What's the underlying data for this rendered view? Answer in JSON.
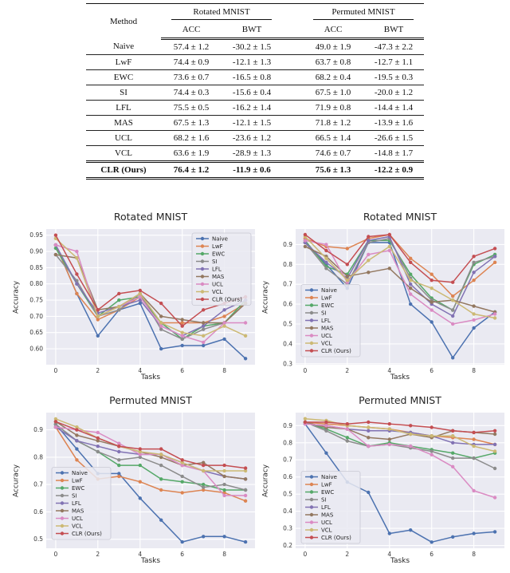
{
  "style": {
    "plot_bg": "#eaeaf2",
    "grid_color": "#ffffff",
    "text_color": "#262626",
    "highlight_color": "#C44E52"
  },
  "table": {
    "method_header": "Method",
    "col_groups": [
      "Rotated MNIST",
      "Permuted MNIST"
    ],
    "sub_headers": [
      "ACC",
      "BWT",
      "ACC",
      "BWT"
    ],
    "rows": [
      {
        "method": "Naive",
        "values": [
          "57.4 ± 1.2",
          "-30.2 ± 1.5",
          "49.0 ± 1.9",
          "-47.3 ± 2.2"
        ],
        "bold": false
      },
      {
        "method": "LwF",
        "values": [
          "74.4 ± 0.9",
          "-12.1 ± 1.3",
          "63.7 ± 0.8",
          "-12.7 ± 1.1"
        ],
        "bold": false
      },
      {
        "method": "EWC",
        "values": [
          "73.6 ± 0.7",
          "-16.5 ± 0.8",
          "68.2 ± 0.4",
          "-19.5 ± 0.3"
        ],
        "bold": false
      },
      {
        "method": "SI",
        "values": [
          "74.4 ± 0.3",
          "-15.6 ± 0.4",
          "67.5 ± 1.0",
          "-20.0 ± 1.2"
        ],
        "bold": false
      },
      {
        "method": "LFL",
        "values": [
          "75.5 ± 0.5",
          "-16.2 ± 1.4",
          "71.9 ± 0.8",
          "-14.4 ± 1.4"
        ],
        "bold": false
      },
      {
        "method": "MAS",
        "values": [
          "67.5 ± 1.3",
          "-12.1 ± 1.5",
          "71.8 ± 1.2",
          "-13.9 ± 1.6"
        ],
        "bold": false
      },
      {
        "method": "UCL",
        "values": [
          "68.2 ± 1.6",
          "-23.6 ± 1.2",
          "66.5 ± 1.4",
          "-26.6 ± 1.5"
        ],
        "bold": false
      },
      {
        "method": "VCL",
        "values": [
          "63.6 ± 1.9",
          "-28.9 ± 1.3",
          "74.6 ± 0.7",
          "-14.8 ± 1.7"
        ],
        "bold": false
      },
      {
        "method": "CLR (Ours)",
        "values": [
          "76.4 ± 1.2",
          "-11.9 ± 0.6",
          "75.6 ± 1.3",
          "-12.2 ± 0.9"
        ],
        "bold": true
      }
    ]
  },
  "chart_data": [
    {
      "type": "line",
      "title": "Rotated MNIST",
      "xlabel": "Tasks",
      "ylabel": "Accuracy",
      "x": [
        0,
        1,
        2,
        3,
        4,
        5,
        6,
        7,
        8,
        9
      ],
      "xlim": [
        -0.45,
        9.45
      ],
      "ylim": [
        0.551,
        0.969
      ],
      "xticks": [
        0,
        2,
        4,
        6,
        8
      ],
      "xtick_labels": [
        "0",
        "2",
        "4",
        "6",
        "8"
      ],
      "yticks": [
        0.6,
        0.65,
        0.7,
        0.75,
        0.8,
        0.85,
        0.9,
        0.95
      ],
      "ytick_labels": [
        "0.60",
        "0.65",
        "0.70",
        "0.75",
        "0.80",
        "0.85",
        "0.90",
        "0.95"
      ],
      "grid": true,
      "legend": {
        "pos": "top-right",
        "bottom_offset": 0
      },
      "series": [
        {
          "name": "Naive",
          "color": "#4C72B0",
          "values": [
            0.92,
            0.77,
            0.64,
            0.72,
            0.74,
            0.6,
            0.61,
            0.61,
            0.63,
            0.57
          ]
        },
        {
          "name": "LwF",
          "color": "#DD8452",
          "values": [
            0.92,
            0.77,
            0.69,
            0.72,
            0.76,
            0.68,
            0.68,
            0.68,
            0.7,
            0.74
          ]
        },
        {
          "name": "EWC",
          "color": "#55A868",
          "values": [
            0.91,
            0.8,
            0.7,
            0.75,
            0.76,
            0.68,
            0.63,
            0.67,
            0.68,
            0.75
          ]
        },
        {
          "name": "SI",
          "color": "#8C8C8C",
          "values": [
            0.89,
            0.81,
            0.7,
            0.72,
            0.77,
            0.66,
            0.63,
            0.66,
            0.68,
            0.74
          ]
        },
        {
          "name": "LFL",
          "color": "#8172B3",
          "values": [
            0.92,
            0.8,
            0.71,
            0.73,
            0.75,
            0.67,
            0.64,
            0.67,
            0.72,
            0.75
          ]
        },
        {
          "name": "MAS",
          "color": "#937860",
          "values": [
            0.89,
            0.88,
            0.72,
            0.73,
            0.77,
            0.7,
            0.69,
            0.68,
            0.68,
            0.74
          ]
        },
        {
          "name": "UCL",
          "color": "#DA8BC3",
          "values": [
            0.92,
            0.9,
            0.7,
            0.73,
            0.76,
            0.67,
            0.64,
            0.62,
            0.68,
            0.68
          ]
        },
        {
          "name": "VCL",
          "color": "#CCB974",
          "values": [
            0.94,
            0.88,
            0.7,
            0.73,
            0.77,
            0.68,
            0.65,
            0.64,
            0.67,
            0.64
          ]
        },
        {
          "name": "CLR (Ours)",
          "color": "#C44E52",
          "values": [
            0.95,
            0.83,
            0.72,
            0.77,
            0.78,
            0.74,
            0.67,
            0.72,
            0.74,
            0.76
          ]
        }
      ]
    },
    {
      "type": "line",
      "title": "Rotated MNIST",
      "xlabel": "Tasks",
      "ylabel": "Accuracy",
      "x": [
        0,
        1,
        2,
        3,
        4,
        5,
        6,
        7,
        8,
        9
      ],
      "xlim": [
        -0.45,
        9.45
      ],
      "ylim": [
        0.295,
        0.978
      ],
      "xticks": [
        0,
        2,
        4,
        6,
        8
      ],
      "xtick_labels": [
        "0",
        "2",
        "4",
        "6",
        "8"
      ],
      "yticks": [
        0.3,
        0.4,
        0.5,
        0.6,
        0.7,
        0.8,
        0.9
      ],
      "ytick_labels": [
        "0.3",
        "0.4",
        "0.5",
        "0.6",
        "0.7",
        "0.8",
        "0.9"
      ],
      "grid": true,
      "legend": {
        "pos": "bottom-left",
        "bottom_offset": 10
      },
      "series": [
        {
          "name": "Naive",
          "color": "#4C72B0",
          "values": [
            0.91,
            0.8,
            0.68,
            0.91,
            0.91,
            0.6,
            0.51,
            0.33,
            0.48,
            0.56
          ]
        },
        {
          "name": "LwF",
          "color": "#DD8452",
          "values": [
            0.93,
            0.89,
            0.88,
            0.93,
            0.95,
            0.83,
            0.75,
            0.64,
            0.72,
            0.81
          ]
        },
        {
          "name": "EWC",
          "color": "#55A868",
          "values": [
            0.92,
            0.79,
            0.75,
            0.92,
            0.92,
            0.75,
            0.63,
            0.57,
            0.8,
            0.85
          ]
        },
        {
          "name": "SI",
          "color": "#8C8C8C",
          "values": [
            0.91,
            0.78,
            0.7,
            0.91,
            0.93,
            0.73,
            0.62,
            0.57,
            0.81,
            0.84
          ]
        },
        {
          "name": "LFL",
          "color": "#8172B3",
          "values": [
            0.91,
            0.81,
            0.73,
            0.92,
            0.94,
            0.7,
            0.6,
            0.54,
            0.76,
            0.84
          ]
        },
        {
          "name": "MAS",
          "color": "#937860",
          "values": [
            0.89,
            0.84,
            0.74,
            0.76,
            0.78,
            0.68,
            0.61,
            0.62,
            0.59,
            0.56
          ]
        },
        {
          "name": "UCL",
          "color": "#DA8BC3",
          "values": [
            0.92,
            0.9,
            0.71,
            0.85,
            0.87,
            0.65,
            0.57,
            0.5,
            0.52,
            0.55
          ]
        },
        {
          "name": "VCL",
          "color": "#CCB974",
          "values": [
            0.94,
            0.83,
            0.72,
            0.82,
            0.89,
            0.72,
            0.68,
            0.62,
            0.55,
            0.53
          ]
        },
        {
          "name": "CLR (Ours)",
          "color": "#C44E52",
          "values": [
            0.95,
            0.87,
            0.8,
            0.94,
            0.95,
            0.81,
            0.72,
            0.71,
            0.84,
            0.88
          ]
        }
      ]
    },
    {
      "type": "line",
      "title": "Permuted MNIST",
      "xlabel": "Tasks",
      "ylabel": "Accuracy",
      "x": [
        0,
        1,
        2,
        3,
        4,
        5,
        6,
        7,
        8,
        9
      ],
      "xlim": [
        -0.45,
        9.45
      ],
      "ylim": [
        0.467,
        0.963
      ],
      "xticks": [
        0,
        2,
        4,
        6,
        8
      ],
      "xtick_labels": [
        "0",
        "2",
        "4",
        "6",
        "8"
      ],
      "yticks": [
        0.5,
        0.6,
        0.7,
        0.8,
        0.9
      ],
      "ytick_labels": [
        "0.5",
        "0.6",
        "0.7",
        "0.8",
        "0.9"
      ],
      "grid": true,
      "legend": {
        "pos": "bottom-left",
        "bottom_offset": 11
      },
      "series": [
        {
          "name": "Naive",
          "color": "#4C72B0",
          "values": [
            0.92,
            0.83,
            0.74,
            0.74,
            0.65,
            0.57,
            0.49,
            0.51,
            0.51,
            0.49
          ]
        },
        {
          "name": "LwF",
          "color": "#DD8452",
          "values": [
            0.91,
            0.79,
            0.72,
            0.73,
            0.71,
            0.68,
            0.67,
            0.68,
            0.67,
            0.64
          ]
        },
        {
          "name": "EWC",
          "color": "#55A868",
          "values": [
            0.92,
            0.86,
            0.82,
            0.77,
            0.77,
            0.72,
            0.71,
            0.7,
            0.68,
            0.68
          ]
        },
        {
          "name": "SI",
          "color": "#8C8C8C",
          "values": [
            0.92,
            0.86,
            0.82,
            0.79,
            0.8,
            0.77,
            0.73,
            0.69,
            0.7,
            0.68
          ]
        },
        {
          "name": "LFL",
          "color": "#8172B3",
          "values": [
            0.91,
            0.86,
            0.84,
            0.82,
            0.81,
            0.81,
            0.78,
            0.75,
            0.73,
            0.72
          ]
        },
        {
          "name": "MAS",
          "color": "#937860",
          "values": [
            0.93,
            0.88,
            0.86,
            0.84,
            0.82,
            0.8,
            0.77,
            0.78,
            0.73,
            0.72
          ]
        },
        {
          "name": "UCL",
          "color": "#DA8BC3",
          "values": [
            0.91,
            0.9,
            0.89,
            0.85,
            0.81,
            0.81,
            0.77,
            0.75,
            0.66,
            0.66
          ]
        },
        {
          "name": "VCL",
          "color": "#CCB974",
          "values": [
            0.94,
            0.91,
            0.87,
            0.84,
            0.82,
            0.81,
            0.78,
            0.75,
            0.75,
            0.75
          ]
        },
        {
          "name": "CLR (Ours)",
          "color": "#C44E52",
          "values": [
            0.93,
            0.9,
            0.87,
            0.84,
            0.83,
            0.83,
            0.79,
            0.77,
            0.77,
            0.76
          ]
        }
      ]
    },
    {
      "type": "line",
      "title": "Permuted MNIST",
      "xlabel": "Tasks",
      "ylabel": "Accuracy",
      "x": [
        0,
        1,
        2,
        3,
        4,
        5,
        6,
        7,
        8,
        9
      ],
      "xlim": [
        -0.45,
        9.45
      ],
      "ylim": [
        0.184,
        0.976
      ],
      "xticks": [
        0,
        2,
        4,
        6,
        8
      ],
      "xtick_labels": [
        "0",
        "2",
        "4",
        "6",
        "8"
      ],
      "yticks": [
        0.2,
        0.3,
        0.4,
        0.5,
        0.6,
        0.7,
        0.8,
        0.9
      ],
      "ytick_labels": [
        "0.2",
        "0.3",
        "0.4",
        "0.5",
        "0.6",
        "0.7",
        "0.8",
        "0.9"
      ],
      "grid": true,
      "legend": {
        "pos": "bottom-left",
        "bottom_offset": 6
      },
      "series": [
        {
          "name": "Naive",
          "color": "#4C72B0",
          "values": [
            0.91,
            0.74,
            0.57,
            0.51,
            0.27,
            0.29,
            0.22,
            0.25,
            0.27,
            0.28
          ]
        },
        {
          "name": "LwF",
          "color": "#DD8452",
          "values": [
            0.92,
            0.91,
            0.9,
            0.89,
            0.88,
            0.86,
            0.84,
            0.83,
            0.82,
            0.79
          ]
        },
        {
          "name": "EWC",
          "color": "#55A868",
          "values": [
            0.92,
            0.88,
            0.83,
            0.78,
            0.8,
            0.78,
            0.76,
            0.74,
            0.71,
            0.74
          ]
        },
        {
          "name": "SI",
          "color": "#8C8C8C",
          "values": [
            0.92,
            0.87,
            0.81,
            0.78,
            0.79,
            0.77,
            0.75,
            0.71,
            0.71,
            0.65
          ]
        },
        {
          "name": "LFL",
          "color": "#8172B3",
          "values": [
            0.91,
            0.9,
            0.88,
            0.87,
            0.87,
            0.86,
            0.84,
            0.8,
            0.79,
            0.79
          ]
        },
        {
          "name": "MAS",
          "color": "#937860",
          "values": [
            0.92,
            0.89,
            0.88,
            0.83,
            0.82,
            0.85,
            0.83,
            0.87,
            0.86,
            0.85
          ]
        },
        {
          "name": "UCL",
          "color": "#DA8BC3",
          "values": [
            0.91,
            0.9,
            0.88,
            0.78,
            0.79,
            0.78,
            0.73,
            0.66,
            0.52,
            0.48
          ]
        },
        {
          "name": "VCL",
          "color": "#CCB974",
          "values": [
            0.94,
            0.93,
            0.9,
            0.89,
            0.88,
            0.85,
            0.84,
            0.84,
            0.78,
            0.75
          ]
        },
        {
          "name": "CLR (Ours)",
          "color": "#C44E52",
          "values": [
            0.92,
            0.92,
            0.91,
            0.92,
            0.91,
            0.9,
            0.89,
            0.87,
            0.86,
            0.87
          ]
        }
      ]
    }
  ]
}
